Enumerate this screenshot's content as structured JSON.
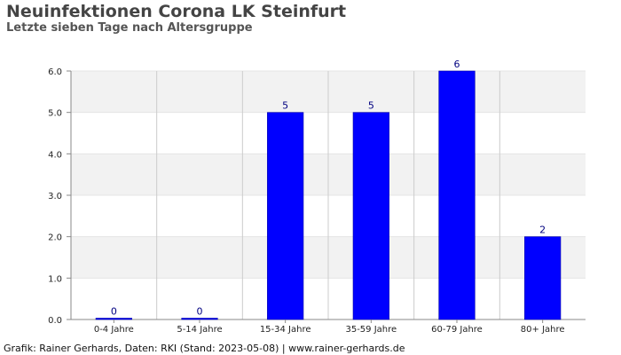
{
  "header": {
    "title": "Neuinfektionen Corona LK Steinfurt",
    "subtitle": "Letzte sieben Tage nach Altersgruppe"
  },
  "footer": {
    "text": "Grafik: Rainer Gerhards, Daten: RKI (Stand: 2023-05-08) | www.rainer-gerhards.de"
  },
  "colors": {
    "bar": "#0000ff",
    "bar_label": "#000080",
    "band": "#f2f2f2",
    "grid": "#cccccc"
  },
  "chart_data": {
    "type": "bar",
    "title": "Neuinfektionen Corona LK Steinfurt",
    "subtitle": "Letzte sieben Tage nach Altersgruppe",
    "categories": [
      "0-4 Jahre",
      "5-14 Jahre",
      "15-34 Jahre",
      "35-59 Jahre",
      "60-79 Jahre",
      "80+ Jahre"
    ],
    "values": [
      0,
      0,
      5,
      5,
      6,
      2
    ],
    "data_labels": [
      "0",
      "0",
      "5",
      "5",
      "6",
      "2"
    ],
    "ylim": [
      0,
      6
    ],
    "yticks": [
      "0.0",
      "1.0",
      "2.0",
      "3.0",
      "4.0",
      "5.0",
      "6.0"
    ],
    "xlabel": "",
    "ylabel": "",
    "grid": true,
    "legend": "none"
  }
}
